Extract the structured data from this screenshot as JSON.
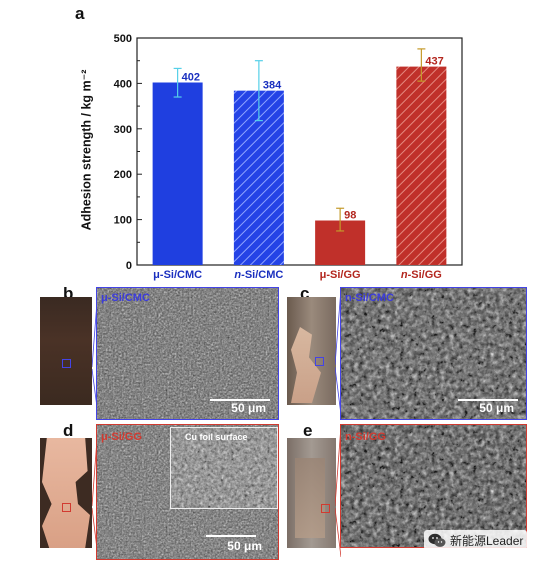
{
  "panels": {
    "a": {
      "letter": "a",
      "chart_data": {
        "type": "bar",
        "categories": [
          "μ-Si/CMC",
          "n-Si/CMC",
          "μ-Si/GG",
          "n-Si/GG"
        ],
        "values": [
          402,
          384,
          98,
          437
        ],
        "errors": [
          [
            370,
            433
          ],
          [
            318,
            450
          ],
          [
            75,
            125
          ],
          [
            405,
            476
          ]
        ],
        "data_labels": [
          "402",
          "384",
          "98",
          "437"
        ],
        "ylabel": "Adhesion strength / kg m⁻²",
        "ylim": [
          0,
          500
        ],
        "yticks": [
          0,
          100,
          200,
          300,
          400,
          500
        ],
        "colors": [
          "#1f3fe0",
          "#1f3fe0",
          "#c0302a",
          "#c0302a"
        ],
        "hatched": [
          false,
          true,
          false,
          true
        ],
        "label_colors": [
          "#1a2fbf",
          "#1a2fbf",
          "#b3261e",
          "#b3261e"
        ],
        "error_colors": [
          "#55d0e8",
          "#55d0e8",
          "#c49a2a",
          "#c49a2a"
        ],
        "grid": false
      }
    },
    "b": {
      "letter": "b",
      "label": "μ-Si/CMC",
      "label_color": "#3b3bdc",
      "scale": "50 μm",
      "frame_color": "#4444e6"
    },
    "c": {
      "letter": "c",
      "label": "n-Si/CMC",
      "label_color": "#3b3bdc",
      "scale": "50 μm",
      "frame_color": "#4444e6"
    },
    "d": {
      "letter": "d",
      "label": "μ-Si/GG",
      "label_color": "#d23a30",
      "scale": "50 μm",
      "inset": "Cu foil surface",
      "frame_color": "#d23a30"
    },
    "e": {
      "letter": "e",
      "label": "n-Si/GG",
      "label_color": "#d23a30",
      "frame_color": "#d23a30"
    }
  },
  "watermark": {
    "text": "新能源Leader",
    "icon": "wechat-icon"
  }
}
